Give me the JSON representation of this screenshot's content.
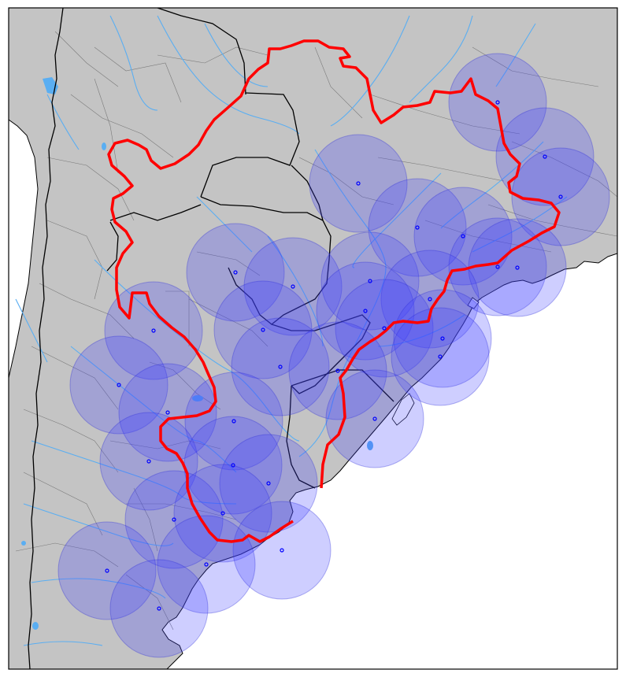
{
  "map": {
    "colors": {
      "land": "#c4c4c4",
      "ocean": "#ffffff",
      "rivers": "#5aaef2",
      "lakes": "#5aaef2",
      "country_borders": "#000000",
      "state_borders": "#7a7a7a",
      "boundary_line": "#ff0000",
      "circle_fill": "#4040ff",
      "circle_stroke": "#2b2bd8",
      "station_marker": "#0000ff"
    },
    "circle_opacity": 0.26,
    "station_count": 29,
    "features": [
      "coastline",
      "country-borders",
      "state-borders",
      "rivers",
      "lakes",
      "boundary-line",
      "coverage-circles",
      "station-markers"
    ]
  }
}
